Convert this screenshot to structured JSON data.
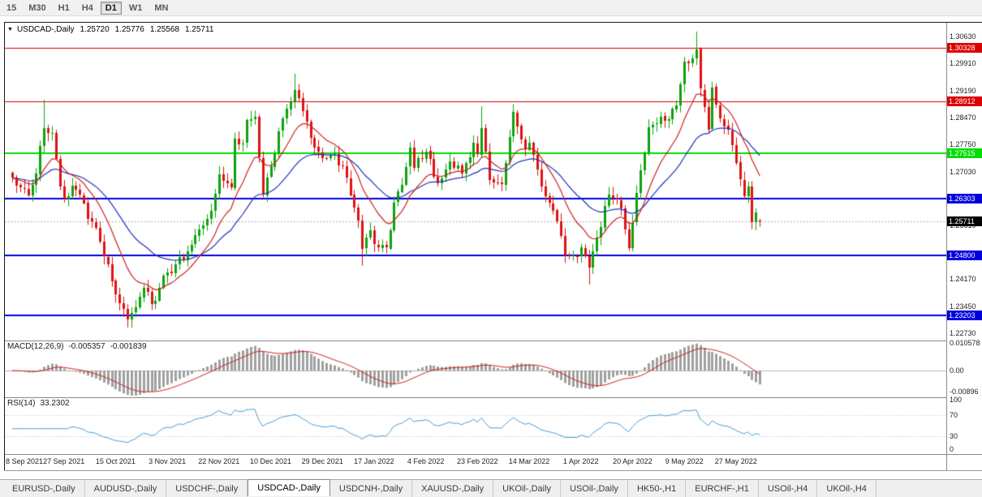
{
  "toolbar": {
    "periods": [
      {
        "label": "15",
        "active": false
      },
      {
        "label": "M30",
        "active": false
      },
      {
        "label": "H1",
        "active": false
      },
      {
        "label": "H4",
        "active": false
      },
      {
        "label": "D1",
        "active": true
      },
      {
        "label": "W1",
        "active": false
      },
      {
        "label": "MN",
        "active": false
      }
    ]
  },
  "chart": {
    "symbol_line": {
      "marker": "▼",
      "title": "USDCAD-,Daily",
      "open": "1.25720",
      "high": "1.25776",
      "low": "1.25568",
      "close": "1.25711"
    }
  },
  "macd": {
    "title": "MACD(12,26,9)",
    "value": "-0.005357",
    "signal": "-0.001839",
    "axis": [
      "0.010578",
      "0.00",
      "-0.00896"
    ]
  },
  "rsi": {
    "title": "RSI(14)",
    "value": "33.2302",
    "axis": [
      "100",
      "70",
      "30",
      "0"
    ]
  },
  "tabs": [
    {
      "label": "EURUSD-,Daily",
      "active": false
    },
    {
      "label": "AUDUSD-,Daily",
      "active": false
    },
    {
      "label": "USDCHF-,Daily",
      "active": false
    },
    {
      "label": "USDCAD-,Daily",
      "active": true
    },
    {
      "label": "USDCNH-,Daily",
      "active": false
    },
    {
      "label": "XAUUSD-,Daily",
      "active": false
    },
    {
      "label": "UKOil-,Daily",
      "active": false
    },
    {
      "label": "USOil-,Daily",
      "active": false
    },
    {
      "label": "HK50-,H1",
      "active": false
    },
    {
      "label": "EURCHF-,H1",
      "active": false
    },
    {
      "label": "USOil-,H4",
      "active": false
    },
    {
      "label": "UKOil-,H4",
      "active": false
    }
  ],
  "chart_data": {
    "type": "candlestick",
    "symbol": "USDCAD",
    "timeframe": "Daily",
    "price_axis": {
      "min": 1.2258,
      "max": 1.3078
    },
    "y_ticks": [
      "1.30630",
      "1.29910",
      "1.29190",
      "1.28470",
      "1.27750",
      "1.27030",
      "1.25610",
      "1.24170",
      "1.23450",
      "1.22730"
    ],
    "levels": [
      {
        "label": "1.30328",
        "price": 1.30328,
        "color": "#dd0000",
        "width": 1
      },
      {
        "label": "1.28912",
        "price": 1.28912,
        "color": "#dd0000",
        "width": 1
      },
      {
        "label": "1.27515",
        "price": 1.27515,
        "color": "#00de00",
        "width": 2
      },
      {
        "label": "1.26303",
        "price": 1.26303,
        "color": "#0000dd",
        "width": 2
      },
      {
        "label": "1.24800",
        "price": 1.248,
        "color": "#0000dd",
        "width": 2
      },
      {
        "label": "1.23203",
        "price": 1.23203,
        "color": "#0000dd",
        "width": 2
      }
    ],
    "current_price": {
      "label": "1.25711",
      "price": 1.25711,
      "color": "#000000"
    },
    "x_labels": [
      {
        "index": 0,
        "label": "8 Sep 2021"
      },
      {
        "index": 13,
        "label": "27 Sep 2021"
      },
      {
        "index": 26,
        "label": "15 Oct 2021"
      },
      {
        "index": 39,
        "label": "3 Nov 2021"
      },
      {
        "index": 52,
        "label": "22 Nov 2021"
      },
      {
        "index": 65,
        "label": "10 Dec 2021"
      },
      {
        "index": 78,
        "label": "29 Dec 2021"
      },
      {
        "index": 91,
        "label": "17 Jan 2022"
      },
      {
        "index": 104,
        "label": "4 Feb 2022"
      },
      {
        "index": 117,
        "label": "23 Feb 2022"
      },
      {
        "index": 130,
        "label": "14 Mar 2022"
      },
      {
        "index": 143,
        "label": "1 Apr 2022"
      },
      {
        "index": 156,
        "label": "20 Apr 2022"
      },
      {
        "index": 169,
        "label": "9 May 2022"
      },
      {
        "index": 182,
        "label": "27 May 2022"
      }
    ],
    "candles_est": {
      "count": 189,
      "waypoints": [
        [
          0,
          1.269
        ],
        [
          2,
          1.2658
        ],
        [
          4,
          1.2636
        ],
        [
          6,
          1.27
        ],
        [
          8,
          1.2822
        ],
        [
          10,
          1.2806
        ],
        [
          12,
          1.2662
        ],
        [
          13,
          1.2632
        ],
        [
          15,
          1.2668
        ],
        [
          17,
          1.2645
        ],
        [
          19,
          1.2575
        ],
        [
          21,
          1.2552
        ],
        [
          24,
          1.2455
        ],
        [
          26,
          1.2372
        ],
        [
          29,
          1.2312
        ],
        [
          30,
          1.233
        ],
        [
          33,
          1.2392
        ],
        [
          35,
          1.2352
        ],
        [
          37,
          1.2392
        ],
        [
          39,
          1.244
        ],
        [
          41,
          1.2452
        ],
        [
          44,
          1.2492
        ],
        [
          47,
          1.255
        ],
        [
          50,
          1.2602
        ],
        [
          52,
          1.27
        ],
        [
          55,
          1.2662
        ],
        [
          56,
          1.2788
        ],
        [
          58,
          1.2778
        ],
        [
          59,
          1.2838
        ],
        [
          61,
          1.2848
        ],
        [
          63,
          1.2642
        ],
        [
          65,
          1.2718
        ],
        [
          68,
          1.2848
        ],
        [
          70,
          1.2888
        ],
        [
          71,
          1.292
        ],
        [
          73,
          1.2868
        ],
        [
          75,
          1.2792
        ],
        [
          78,
          1.2742
        ],
        [
          80,
          1.275
        ],
        [
          83,
          1.2722
        ],
        [
          85,
          1.2642
        ],
        [
          87,
          1.2572
        ],
        [
          88,
          1.2502
        ],
        [
          90,
          1.255
        ],
        [
          91,
          1.2512
        ],
        [
          94,
          1.25
        ],
        [
          96,
          1.2618
        ],
        [
          98,
          1.2668
        ],
        [
          100,
          1.2768
        ],
        [
          101,
          1.2712
        ],
        [
          104,
          1.276
        ],
        [
          107,
          1.2672
        ],
        [
          110,
          1.2728
        ],
        [
          113,
          1.27
        ],
        [
          116,
          1.2778
        ],
        [
          117,
          1.275
        ],
        [
          118,
          1.282
        ],
        [
          120,
          1.2682
        ],
        [
          123,
          1.2668
        ],
        [
          126,
          1.2858
        ],
        [
          129,
          1.2762
        ],
        [
          130,
          1.2778
        ],
        [
          133,
          1.2662
        ],
        [
          136,
          1.2602
        ],
        [
          139,
          1.2482
        ],
        [
          142,
          1.2478
        ],
        [
          143,
          1.25
        ],
        [
          145,
          1.2452
        ],
        [
          147,
          1.253
        ],
        [
          150,
          1.2638
        ],
        [
          153,
          1.261
        ],
        [
          155,
          1.2502
        ],
        [
          158,
          1.2708
        ],
        [
          160,
          1.2818
        ],
        [
          163,
          1.2848
        ],
        [
          165,
          1.284
        ],
        [
          167,
          1.2878
        ],
        [
          169,
          1.2998
        ],
        [
          171,
          1.3002
        ],
        [
          172,
          1.3028
        ],
        [
          173,
          1.2922
        ],
        [
          175,
          1.2812
        ],
        [
          176,
          1.293
        ],
        [
          178,
          1.2846
        ],
        [
          180,
          1.2812
        ],
        [
          182,
          1.2726
        ],
        [
          183,
          1.2682
        ],
        [
          184,
          1.264
        ],
        [
          185,
          1.2661
        ],
        [
          186,
          1.2569
        ],
        [
          187,
          1.2591
        ],
        [
          188,
          1.25711
        ]
      ],
      "wick_overrides": {
        "8": {
          "h": 1.2895
        },
        "30": {
          "l": 1.2288
        },
        "71": {
          "h": 1.2964
        },
        "88": {
          "l": 1.2453
        },
        "118": {
          "h": 1.2877
        },
        "145": {
          "l": 1.2403
        },
        "172": {
          "h": 1.3076
        }
      },
      "last": {
        "o": 1.2572,
        "h": 1.25776,
        "l": 1.25568,
        "c": 1.25711
      }
    },
    "indicators": {
      "macd": {
        "params": [
          12,
          26,
          9
        ],
        "last_main": -0.005357,
        "last_signal": -0.001839
      },
      "rsi": {
        "params": [
          14
        ],
        "last": 33.2302,
        "levels": [
          30,
          70
        ]
      }
    },
    "colors": {
      "up": "#0da30d",
      "down": "#e01212",
      "ma_fast": "#cc2222",
      "ma_slow": "#2233bb",
      "macd_hist": "#a0a0a0",
      "macd_signal": "#cc2222",
      "rsi_line": "#4a9fd8",
      "level_red": "#dd0000",
      "level_green": "#00de00",
      "level_blue": "#0000dd"
    }
  }
}
